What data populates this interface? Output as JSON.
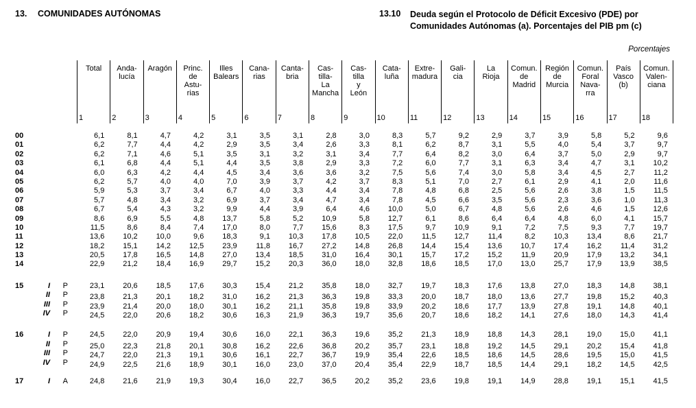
{
  "header": {
    "section_number": "13.",
    "section_title": "COMUNIDADES AUTÓNOMAS",
    "table_number": "13.10",
    "table_title_lines": [
      "Deuda según el Protocolo de Déficit Excesivo (PDE) por",
      "Comunidades Autónomas (a). Porcentajes del PIB pm (c)"
    ],
    "units_label": "Porcentajes"
  },
  "table": {
    "columns": [
      {
        "number": "1",
        "label_lines": [
          "Total"
        ]
      },
      {
        "number": "2",
        "label_lines": [
          "Anda-",
          "lucía"
        ]
      },
      {
        "number": "3",
        "label_lines": [
          "Aragón"
        ]
      },
      {
        "number": "4",
        "label_lines": [
          "Princ.",
          "de",
          "Astu-",
          "rias"
        ]
      },
      {
        "number": "5",
        "label_lines": [
          "Illes",
          "Balears"
        ]
      },
      {
        "number": "6",
        "label_lines": [
          "Cana-",
          "rias"
        ]
      },
      {
        "number": "7",
        "label_lines": [
          "Canta-",
          "bria"
        ]
      },
      {
        "number": "8",
        "label_lines": [
          "Cas-",
          "tilla-",
          "La",
          "Mancha"
        ]
      },
      {
        "number": "9",
        "label_lines": [
          "Cas-",
          "tilla",
          "y",
          "León"
        ]
      },
      {
        "number": "10",
        "label_lines": [
          "Cata-",
          "luña"
        ]
      },
      {
        "number": "11",
        "label_lines": [
          "Extre-",
          "madura"
        ]
      },
      {
        "number": "12",
        "label_lines": [
          "Gali-",
          "cia"
        ]
      },
      {
        "number": "13",
        "label_lines": [
          "La",
          "Rioja"
        ]
      },
      {
        "number": "14",
        "label_lines": [
          "Comun.",
          "de",
          "Madrid"
        ]
      },
      {
        "number": "15",
        "label_lines": [
          "Región",
          "de",
          "Murcia"
        ]
      },
      {
        "number": "16",
        "label_lines": [
          "Comun.",
          "Foral",
          "Nava-",
          "rra"
        ]
      },
      {
        "number": "17",
        "label_lines": [
          "País",
          "Vasco",
          "(b)"
        ]
      },
      {
        "number": "18",
        "label_lines": [
          "Comun.",
          "Valen-",
          "ciana"
        ]
      }
    ],
    "row_groups": [
      {
        "rows": [
          {
            "year": "00",
            "quarter": "",
            "flag": "",
            "values": [
              "6,1",
              "8,1",
              "4,7",
              "4,2",
              "3,1",
              "3,5",
              "3,1",
              "2,8",
              "3,0",
              "8,3",
              "5,7",
              "9,2",
              "2,9",
              "3,7",
              "3,9",
              "5,8",
              "5,2",
              "9,6"
            ]
          },
          {
            "year": "01",
            "quarter": "",
            "flag": "",
            "values": [
              "6,2",
              "7,7",
              "4,4",
              "4,2",
              "2,9",
              "3,5",
              "3,4",
              "2,6",
              "3,3",
              "8,1",
              "6,2",
              "8,7",
              "3,1",
              "5,5",
              "4,0",
              "5,4",
              "3,7",
              "9,7"
            ]
          },
          {
            "year": "02",
            "quarter": "",
            "flag": "",
            "values": [
              "6,2",
              "7,1",
              "4,6",
              "5,1",
              "3,5",
              "3,1",
              "3,2",
              "3,1",
              "3,4",
              "7,7",
              "6,4",
              "8,2",
              "3,0",
              "6,4",
              "3,7",
              "5,0",
              "2,9",
              "9,7"
            ]
          },
          {
            "year": "03",
            "quarter": "",
            "flag": "",
            "values": [
              "6,1",
              "6,8",
              "4,4",
              "5,1",
              "4,4",
              "3,5",
              "3,8",
              "2,9",
              "3,3",
              "7,2",
              "6,0",
              "7,7",
              "3,1",
              "6,3",
              "3,4",
              "4,7",
              "3,1",
              "10,2"
            ]
          },
          {
            "year": "04",
            "quarter": "",
            "flag": "",
            "values": [
              "6,0",
              "6,3",
              "4,2",
              "4,4",
              "4,5",
              "3,4",
              "3,6",
              "3,6",
              "3,2",
              "7,5",
              "5,6",
              "7,4",
              "3,0",
              "5,8",
              "3,4",
              "4,5",
              "2,7",
              "11,2"
            ]
          },
          {
            "year": "05",
            "quarter": "",
            "flag": "",
            "values": [
              "6,2",
              "5,7",
              "4,0",
              "4,0",
              "7,0",
              "3,9",
              "3,7",
              "4,2",
              "3,7",
              "8,3",
              "5,1",
              "7,0",
              "2,7",
              "6,1",
              "2,9",
              "4,1",
              "2,0",
              "11,6"
            ]
          },
          {
            "year": "06",
            "quarter": "",
            "flag": "",
            "values": [
              "5,9",
              "5,3",
              "3,7",
              "3,4",
              "6,7",
              "4,0",
              "3,3",
              "4,4",
              "3,4",
              "7,8",
              "4,8",
              "6,8",
              "2,5",
              "5,6",
              "2,6",
              "3,8",
              "1,5",
              "11,5"
            ]
          },
          {
            "year": "07",
            "quarter": "",
            "flag": "",
            "values": [
              "5,7",
              "4,8",
              "3,4",
              "3,2",
              "6,9",
              "3,7",
              "3,4",
              "4,7",
              "3,4",
              "7,8",
              "4,5",
              "6,6",
              "3,5",
              "5,6",
              "2,3",
              "3,6",
              "1,0",
              "11,3"
            ]
          },
          {
            "year": "08",
            "quarter": "",
            "flag": "",
            "values": [
              "6,7",
              "5,4",
              "4,3",
              "3,2",
              "9,9",
              "4,4",
              "3,9",
              "6,4",
              "4,6",
              "10,0",
              "5,0",
              "6,7",
              "4,8",
              "5,6",
              "2,6",
              "4,6",
              "1,5",
              "12,6"
            ]
          },
          {
            "year": "09",
            "quarter": "",
            "flag": "",
            "values": [
              "8,6",
              "6,9",
              "5,5",
              "4,8",
              "13,7",
              "5,8",
              "5,2",
              "10,9",
              "5,8",
              "12,7",
              "6,1",
              "8,6",
              "6,4",
              "6,4",
              "4,8",
              "6,0",
              "4,1",
              "15,7"
            ]
          },
          {
            "year": "10",
            "quarter": "",
            "flag": "",
            "values": [
              "11,5",
              "8,6",
              "8,4",
              "7,4",
              "17,0",
              "8,0",
              "7,7",
              "15,6",
              "8,3",
              "17,5",
              "9,7",
              "10,9",
              "9,1",
              "7,2",
              "7,5",
              "9,3",
              "7,7",
              "19,7"
            ]
          },
          {
            "year": "11",
            "quarter": "",
            "flag": "",
            "values": [
              "13,6",
              "10,2",
              "10,0",
              "9,6",
              "18,3",
              "9,1",
              "10,3",
              "17,8",
              "10,5",
              "22,0",
              "11,5",
              "12,7",
              "11,4",
              "8,2",
              "10,3",
              "13,4",
              "8,6",
              "21,7"
            ]
          },
          {
            "year": "12",
            "quarter": "",
            "flag": "",
            "values": [
              "18,2",
              "15,1",
              "14,2",
              "12,5",
              "23,9",
              "11,8",
              "16,7",
              "27,2",
              "14,8",
              "26,8",
              "14,4",
              "15,4",
              "13,6",
              "10,7",
              "17,4",
              "16,2",
              "11,4",
              "31,2"
            ]
          },
          {
            "year": "13",
            "quarter": "",
            "flag": "",
            "values": [
              "20,5",
              "17,8",
              "16,5",
              "14,8",
              "27,0",
              "13,4",
              "18,5",
              "31,0",
              "16,4",
              "30,1",
              "15,7",
              "17,2",
              "15,2",
              "11,9",
              "20,9",
              "17,9",
              "13,2",
              "34,1"
            ]
          },
          {
            "year": "14",
            "quarter": "",
            "flag": "",
            "values": [
              "22,9",
              "21,2",
              "18,4",
              "16,9",
              "29,7",
              "15,2",
              "20,3",
              "36,0",
              "18,0",
              "32,8",
              "18,6",
              "18,5",
              "17,0",
              "13,0",
              "25,7",
              "17,9",
              "13,9",
              "38,5"
            ]
          }
        ]
      },
      {
        "rows": [
          {
            "year": "15",
            "quarter": "I",
            "flag": "P",
            "values": [
              "23,1",
              "20,6",
              "18,5",
              "17,6",
              "30,3",
              "15,4",
              "21,2",
              "35,8",
              "18,0",
              "32,7",
              "19,7",
              "18,3",
              "17,6",
              "13,8",
              "27,0",
              "18,3",
              "14,8",
              "38,1"
            ]
          },
          {
            "year": "",
            "quarter": "II",
            "flag": "P",
            "values": [
              "23,8",
              "21,3",
              "20,1",
              "18,2",
              "31,0",
              "16,2",
              "21,3",
              "36,3",
              "19,8",
              "33,3",
              "20,0",
              "18,7",
              "18,0",
              "13,6",
              "27,7",
              "19,8",
              "15,2",
              "40,3"
            ]
          },
          {
            "year": "",
            "quarter": "III",
            "flag": "P",
            "values": [
              "23,9",
              "21,4",
              "20,0",
              "18,0",
              "30,1",
              "16,2",
              "21,1",
              "35,8",
              "19,8",
              "33,9",
              "20,2",
              "18,6",
              "17,7",
              "13,9",
              "27,8",
              "19,1",
              "14,8",
              "40,1"
            ]
          },
          {
            "year": "",
            "quarter": "IV",
            "flag": "P",
            "values": [
              "24,5",
              "22,0",
              "20,6",
              "18,2",
              "30,6",
              "16,3",
              "21,9",
              "36,3",
              "19,7",
              "35,6",
              "20,7",
              "18,6",
              "18,2",
              "14,1",
              "27,6",
              "18,0",
              "14,3",
              "41,4"
            ]
          }
        ]
      },
      {
        "rows": [
          {
            "year": "16",
            "quarter": "I",
            "flag": "P",
            "values": [
              "24,5",
              "22,0",
              "20,9",
              "19,4",
              "30,6",
              "16,0",
              "22,1",
              "36,3",
              "19,6",
              "35,2",
              "21,3",
              "18,9",
              "18,8",
              "14,3",
              "28,1",
              "19,0",
              "15,0",
              "41,1"
            ]
          },
          {
            "year": "",
            "quarter": "II",
            "flag": "P",
            "values": [
              "25,0",
              "22,3",
              "21,8",
              "20,1",
              "30,8",
              "16,2",
              "22,6",
              "36,8",
              "20,2",
              "35,7",
              "23,1",
              "18,8",
              "19,2",
              "14,5",
              "29,1",
              "20,2",
              "15,4",
              "41,8"
            ]
          },
          {
            "year": "",
            "quarter": "III",
            "flag": "P",
            "values": [
              "24,7",
              "22,0",
              "21,3",
              "19,1",
              "30,6",
              "16,1",
              "22,7",
              "36,7",
              "19,9",
              "35,4",
              "22,6",
              "18,5",
              "18,6",
              "14,5",
              "28,6",
              "19,5",
              "15,0",
              "41,5"
            ]
          },
          {
            "year": "",
            "quarter": "IV",
            "flag": "P",
            "values": [
              "24,9",
              "22,5",
              "21,6",
              "18,9",
              "30,1",
              "16,0",
              "23,0",
              "37,0",
              "20,4",
              "35,4",
              "22,9",
              "18,7",
              "18,5",
              "14,4",
              "29,1",
              "18,2",
              "14,5",
              "42,5"
            ]
          }
        ]
      },
      {
        "rows": [
          {
            "year": "17",
            "quarter": "I",
            "flag": "A",
            "values": [
              "24,8",
              "21,6",
              "21,9",
              "19,3",
              "30,4",
              "16,0",
              "22,7",
              "36,5",
              "20,2",
              "35,2",
              "23,6",
              "19,8",
              "19,1",
              "14,9",
              "28,8",
              "19,1",
              "15,1",
              "41,5"
            ]
          }
        ]
      }
    ]
  }
}
